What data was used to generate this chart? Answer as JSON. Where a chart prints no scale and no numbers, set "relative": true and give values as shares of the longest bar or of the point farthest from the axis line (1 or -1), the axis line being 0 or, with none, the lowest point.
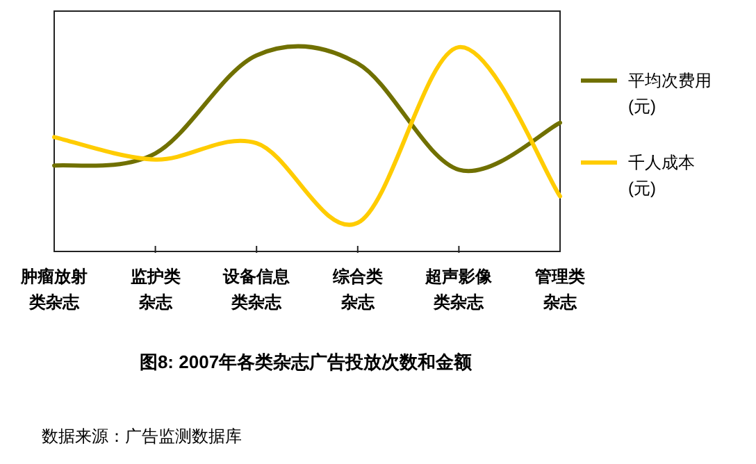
{
  "chart_data": {
    "type": "line",
    "relative": true,
    "legend": "right",
    "title": "图8: 2007年各类杂志广告投放次数和金额",
    "categories": [
      "肿瘤放射类杂志",
      "监护类杂志",
      "设备信息类杂志",
      "综合类杂志",
      "超声影像类杂志",
      "管理类杂志"
    ],
    "series": [
      {
        "name": "平均次费用(元)",
        "color": "#707000",
        "values": [
          0.42,
          0.48,
          0.96,
          0.92,
          0.4,
          0.63
        ]
      },
      {
        "name": "千人成本(元)",
        "color": "#ffcc00",
        "values": [
          0.56,
          0.45,
          0.53,
          0.14,
          1,
          0.27
        ]
      }
    ],
    "annotations": [
      "数据来源：广告监测数据库"
    ]
  }
}
